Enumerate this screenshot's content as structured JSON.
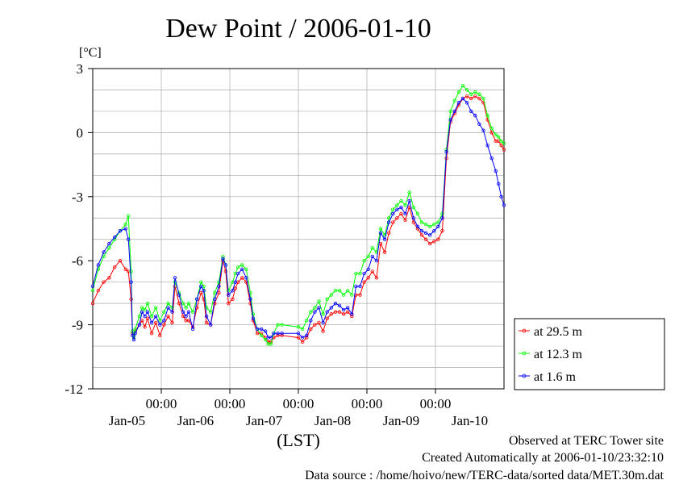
{
  "chart_data": {
    "type": "line",
    "title": "Dew Point / 2006-01-10",
    "ylabel": "[°C]",
    "xlabel": "(LST)",
    "ylim": [
      -12,
      3
    ],
    "yticks": [
      "3",
      "0",
      "-3",
      "-6",
      "-9",
      "-12"
    ],
    "ytick_values": [
      3,
      0,
      -3,
      -6,
      -9,
      -12
    ],
    "xlim": [
      0,
      6
    ],
    "xticks_time": [
      "00:00",
      "00:00",
      "00:00",
      "00:00",
      "00:00"
    ],
    "xtick_positions": [
      1,
      2,
      3,
      4,
      5
    ],
    "x_day_labels": [
      "Jan-05",
      "Jan-06",
      "Jan-07",
      "Jan-08",
      "Jan-09",
      "Jan-10"
    ],
    "x_day_positions": [
      0.5,
      1.5,
      2.5,
      3.5,
      4.5,
      5.5
    ],
    "grid": true,
    "legend_position": "right",
    "series": [
      {
        "name": "at 29.5 m",
        "color": "#ff0000",
        "x": [
          0.0,
          0.08,
          0.16,
          0.24,
          0.32,
          0.4,
          0.48,
          0.52,
          0.56,
          0.58,
          0.6,
          0.62,
          0.68,
          0.72,
          0.76,
          0.8,
          0.86,
          0.92,
          0.98,
          1.04,
          1.1,
          1.16,
          1.2,
          1.26,
          1.32,
          1.36,
          1.4,
          1.46,
          1.52,
          1.58,
          1.62,
          1.66,
          1.72,
          1.78,
          1.84,
          1.9,
          1.94,
          1.98,
          2.04,
          2.08,
          2.12,
          2.18,
          2.24,
          2.3,
          2.34,
          2.4,
          2.46,
          2.52,
          2.56,
          2.6,
          2.64,
          2.7,
          2.76,
          3.0,
          3.06,
          3.12,
          3.18,
          3.24,
          3.3,
          3.36,
          3.42,
          3.48,
          3.54,
          3.6,
          3.66,
          3.72,
          3.78,
          3.84,
          3.9,
          3.96,
          4.02,
          4.08,
          4.14,
          4.2,
          4.26,
          4.32,
          4.38,
          4.44,
          4.5,
          4.56,
          4.62,
          4.68,
          4.74,
          4.8,
          4.86,
          4.92,
          4.98,
          5.04,
          5.1,
          5.16,
          5.22,
          5.28,
          5.34,
          5.4,
          5.46,
          5.52,
          5.58,
          5.64,
          5.7,
          5.76,
          5.82,
          5.88,
          5.92,
          5.96,
          6.0
        ],
        "y": [
          -8.0,
          -7.4,
          -7.0,
          -6.8,
          -6.3,
          -6.0,
          -6.4,
          -6.5,
          -7.8,
          -9.4,
          -9.6,
          -9.3,
          -9.0,
          -8.8,
          -9.1,
          -8.7,
          -9.4,
          -8.9,
          -9.5,
          -9.0,
          -8.6,
          -8.9,
          -7.2,
          -8.0,
          -8.6,
          -8.8,
          -8.8,
          -9.1,
          -8.2,
          -7.5,
          -7.8,
          -8.9,
          -9.0,
          -8.0,
          -7.5,
          -6.0,
          -6.5,
          -8.0,
          -7.8,
          -7.3,
          -7.0,
          -6.8,
          -7.0,
          -8.0,
          -8.8,
          -9.4,
          -9.4,
          -9.6,
          -9.8,
          -9.8,
          -9.6,
          -9.5,
          -9.5,
          -9.6,
          -9.8,
          -9.6,
          -9.2,
          -9.0,
          -8.9,
          -9.3,
          -8.7,
          -8.5,
          -8.4,
          -8.4,
          -8.5,
          -8.4,
          -8.6,
          -7.6,
          -7.6,
          -7.0,
          -6.8,
          -6.5,
          -6.8,
          -5.2,
          -5.6,
          -4.7,
          -4.2,
          -4.0,
          -3.8,
          -4.1,
          -3.5,
          -4.2,
          -4.5,
          -4.8,
          -5.0,
          -5.2,
          -5.1,
          -5.0,
          -4.6,
          -1.2,
          0.5,
          0.9,
          1.3,
          1.6,
          1.7,
          1.6,
          1.7,
          1.6,
          1.4,
          0.6,
          0.0,
          -0.4,
          -0.4,
          -0.6,
          -0.8
        ],
        "visible_text": "at 29.5 m"
      },
      {
        "name": "at 12.3 m",
        "color": "#00ff00",
        "x": [
          0.0,
          0.08,
          0.16,
          0.24,
          0.32,
          0.4,
          0.48,
          0.52,
          0.56,
          0.58,
          0.6,
          0.62,
          0.68,
          0.72,
          0.76,
          0.8,
          0.86,
          0.92,
          0.98,
          1.04,
          1.1,
          1.16,
          1.2,
          1.26,
          1.32,
          1.36,
          1.4,
          1.46,
          1.52,
          1.58,
          1.62,
          1.66,
          1.72,
          1.78,
          1.84,
          1.9,
          1.94,
          1.98,
          2.04,
          2.08,
          2.12,
          2.18,
          2.24,
          2.3,
          2.34,
          2.4,
          2.46,
          2.52,
          2.56,
          2.6,
          2.64,
          2.7,
          2.76,
          3.0,
          3.06,
          3.12,
          3.18,
          3.24,
          3.3,
          3.36,
          3.42,
          3.48,
          3.54,
          3.6,
          3.66,
          3.72,
          3.78,
          3.84,
          3.9,
          3.96,
          4.02,
          4.08,
          4.14,
          4.2,
          4.26,
          4.32,
          4.38,
          4.44,
          4.5,
          4.56,
          4.62,
          4.68,
          4.74,
          4.8,
          4.86,
          4.92,
          4.98,
          5.04,
          5.1,
          5.16,
          5.22,
          5.28,
          5.34,
          5.4,
          5.46,
          5.52,
          5.58,
          5.64,
          5.7,
          5.76,
          5.82,
          5.88,
          5.92,
          5.96,
          6.0
        ],
        "y": [
          -7.4,
          -6.4,
          -5.8,
          -5.4,
          -5.0,
          -4.6,
          -4.3,
          -3.9,
          -6.5,
          -9.3,
          -9.6,
          -9.2,
          -8.6,
          -8.2,
          -8.3,
          -8.0,
          -8.6,
          -8.2,
          -8.8,
          -8.4,
          -8.0,
          -8.2,
          -7.0,
          -7.5,
          -8.0,
          -8.2,
          -8.0,
          -8.4,
          -7.8,
          -7.0,
          -7.2,
          -8.2,
          -8.4,
          -7.5,
          -7.0,
          -5.8,
          -6.2,
          -7.4,
          -7.0,
          -6.6,
          -6.3,
          -6.2,
          -6.4,
          -7.5,
          -8.5,
          -9.2,
          -9.5,
          -9.7,
          -9.9,
          -9.9,
          -9.4,
          -9.0,
          -9.0,
          -9.1,
          -9.2,
          -8.8,
          -8.4,
          -8.2,
          -7.9,
          -8.5,
          -7.8,
          -7.6,
          -7.4,
          -7.4,
          -7.6,
          -7.4,
          -7.6,
          -6.6,
          -6.6,
          -6.0,
          -5.8,
          -5.4,
          -5.6,
          -4.5,
          -4.8,
          -4.0,
          -3.6,
          -3.4,
          -3.2,
          -3.4,
          -2.8,
          -3.5,
          -3.8,
          -4.2,
          -4.3,
          -4.4,
          -4.3,
          -4.2,
          -3.8,
          -0.8,
          1.0,
          1.5,
          1.9,
          2.2,
          2.0,
          1.8,
          1.9,
          1.8,
          1.6,
          0.8,
          0.2,
          -0.1,
          -0.2,
          -0.4,
          -0.5
        ],
        "visible_text": "at 12.3 m"
      },
      {
        "name": "at 1.6 m",
        "color": "#0000ff",
        "x": [
          0.0,
          0.08,
          0.16,
          0.24,
          0.32,
          0.4,
          0.48,
          0.52,
          0.56,
          0.58,
          0.6,
          0.62,
          0.68,
          0.72,
          0.76,
          0.8,
          0.86,
          0.92,
          0.98,
          1.04,
          1.1,
          1.16,
          1.2,
          1.26,
          1.32,
          1.36,
          1.4,
          1.46,
          1.52,
          1.58,
          1.62,
          1.66,
          1.72,
          1.78,
          1.84,
          1.9,
          1.94,
          1.98,
          2.04,
          2.08,
          2.12,
          2.18,
          2.24,
          2.3,
          2.34,
          2.4,
          2.46,
          2.52,
          2.56,
          2.6,
          2.64,
          2.7,
          2.76,
          3.0,
          3.06,
          3.12,
          3.18,
          3.24,
          3.3,
          3.36,
          3.42,
          3.48,
          3.54,
          3.6,
          3.66,
          3.72,
          3.78,
          3.84,
          3.9,
          3.96,
          4.02,
          4.08,
          4.14,
          4.2,
          4.26,
          4.32,
          4.38,
          4.44,
          4.5,
          4.56,
          4.62,
          4.68,
          4.74,
          4.8,
          4.86,
          4.92,
          4.98,
          5.04,
          5.1,
          5.16,
          5.22,
          5.28,
          5.34,
          5.4,
          5.46,
          5.52,
          5.58,
          5.64,
          5.7,
          5.76,
          5.82,
          5.88,
          5.92,
          5.96,
          6.0
        ],
        "y": [
          -7.2,
          -6.2,
          -5.6,
          -5.2,
          -4.9,
          -4.6,
          -4.5,
          -5.0,
          -7.0,
          -9.5,
          -9.7,
          -9.4,
          -9.0,
          -8.4,
          -8.6,
          -8.4,
          -8.9,
          -8.6,
          -9.0,
          -8.8,
          -8.2,
          -8.4,
          -6.8,
          -7.6,
          -8.4,
          -8.6,
          -8.4,
          -9.2,
          -7.8,
          -7.2,
          -7.4,
          -8.6,
          -9.0,
          -7.8,
          -7.2,
          -5.9,
          -6.2,
          -7.6,
          -7.4,
          -7.0,
          -6.6,
          -6.4,
          -6.8,
          -7.8,
          -8.7,
          -9.2,
          -9.2,
          -9.3,
          -9.6,
          -9.6,
          -9.4,
          -9.4,
          -9.4,
          -9.4,
          -9.6,
          -9.5,
          -8.8,
          -8.4,
          -8.2,
          -8.9,
          -8.4,
          -8.2,
          -8.0,
          -8.1,
          -8.3,
          -8.2,
          -8.5,
          -7.2,
          -7.2,
          -6.6,
          -6.4,
          -5.8,
          -6.0,
          -4.7,
          -5.0,
          -4.2,
          -3.8,
          -3.6,
          -3.5,
          -3.8,
          -3.2,
          -4.0,
          -4.4,
          -4.6,
          -4.7,
          -4.8,
          -4.6,
          -4.4,
          -4.0,
          -0.9,
          0.6,
          1.0,
          1.4,
          1.6,
          1.4,
          1.0,
          0.8,
          0.4,
          0.1,
          -0.6,
          -1.2,
          -1.8,
          -2.4,
          -3.0,
          -3.4
        ],
        "visible_text": "at 1.6 m"
      }
    ]
  },
  "footer": {
    "line1": "Observed at TERC Tower site",
    "line2": "Created Automatically at 2006-01-10/23:32:10",
    "line3": "Data source : /home/hoivo/new/TERC-data/sorted  data/MET.30m.dat"
  }
}
